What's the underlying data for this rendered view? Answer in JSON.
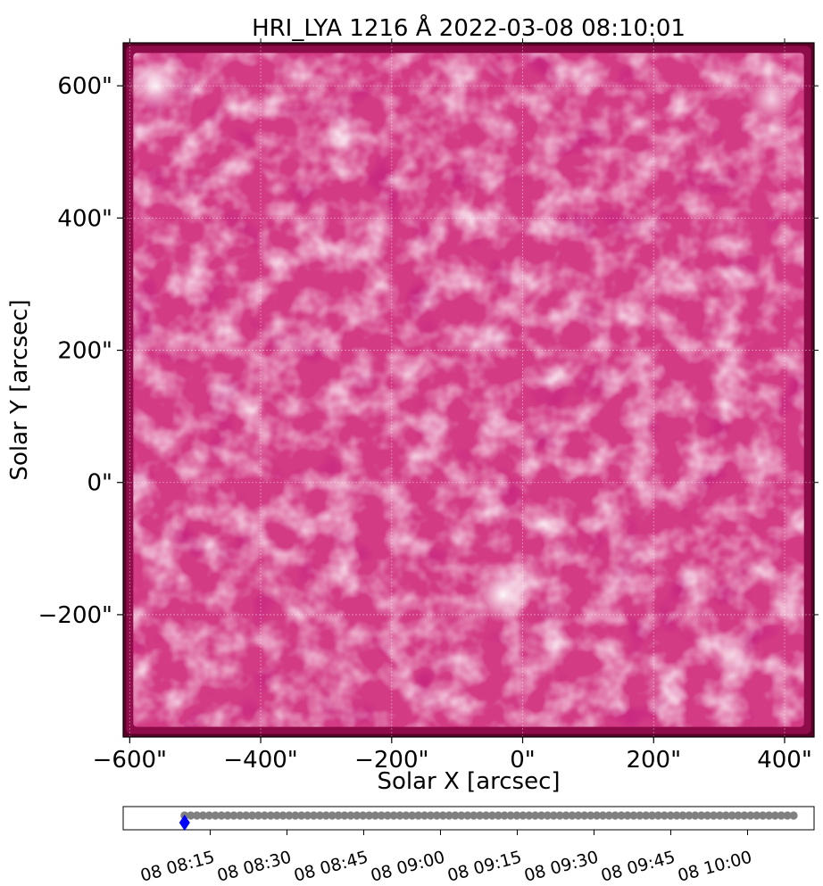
{
  "chart_data": [
    {
      "type": "heatmap",
      "title": "HRI_LYA 1216 Å 2022-03-08 08:10:01",
      "xlabel": "Solar X [arcsec]",
      "ylabel": "Solar Y [arcsec]",
      "xlim": [
        -610,
        445
      ],
      "ylim": [
        -385,
        665
      ],
      "xticks": [
        -600,
        -400,
        -200,
        0,
        200,
        400
      ],
      "yticks": [
        -200,
        0,
        200,
        400,
        600
      ],
      "xtick_labels": [
        "−600\"",
        "−400\"",
        "−200\"",
        "0\"",
        "200\"",
        "400\""
      ],
      "ytick_labels": [
        "−200\"",
        "0\"",
        "200\"",
        "400\"",
        "600\""
      ],
      "image_extent_x": [
        -600,
        435
      ],
      "image_extent_y": [
        -375,
        655
      ],
      "grid": true,
      "colormap": [
        "#4a0022",
        "#8c0a48",
        "#d0307c",
        "#e65aa0",
        "#f7a8cf",
        "#ffffff"
      ],
      "features": [
        {
          "x": -560,
          "y": 600,
          "intensity": 0.95
        },
        {
          "x": -30,
          "y": -170,
          "intensity": 1.0
        },
        {
          "x": 380,
          "y": 580,
          "intensity": 0.8
        },
        {
          "x": 320,
          "y": -260,
          "intensity": 0.75
        }
      ]
    },
    {
      "type": "scatter",
      "xlabel": "",
      "ylabel": "",
      "x_tick_labels": [
        "08 08:15",
        "08 08:30",
        "08 08:45",
        "09:00",
        "09:15",
        "09:30",
        "09:45",
        "10:00"
      ],
      "x_tick_labels_full": [
        "08 08:15",
        "08 08:30",
        "08 08:45",
        "08 09:00",
        "08 09:15",
        "08 09:30",
        "08 09:45",
        "08 10:00"
      ],
      "x_tick_minutes": [
        495,
        510,
        525,
        540,
        555,
        570,
        585,
        600
      ],
      "xlim": [
        478,
        613
      ],
      "series": [
        {
          "marker": "circle",
          "color": "#808080",
          "start_minute": 490,
          "end_minute": 609,
          "count": 100
        },
        {
          "marker": "diamond",
          "color": "#0000ff",
          "x": [
            490
          ]
        }
      ]
    }
  ]
}
